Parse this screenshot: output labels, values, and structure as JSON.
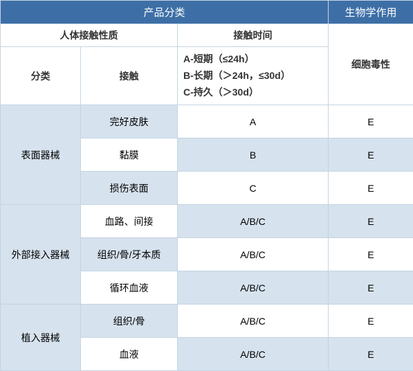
{
  "header": {
    "product_classification": "产品分类",
    "biological_effect": "生物学作用",
    "contact_nature": "人体接触性质",
    "contact_time": "接触时间",
    "classification_col": "分类",
    "contact_col": "接触",
    "time_lineA": "A-短期（≤24h）",
    "time_lineB": "B-长期（＞24h，≤30d）",
    "time_lineC": "C-持久（＞30d）",
    "cytotoxicity": "细胞毒性"
  },
  "rows": [
    {
      "category": "表面器械",
      "contact": "完好皮肤",
      "time": "A",
      "bio": "E"
    },
    {
      "category": "",
      "contact": "黏膜",
      "time": "B",
      "bio": "E"
    },
    {
      "category": "",
      "contact": "损伤表面",
      "time": "C",
      "bio": "E"
    },
    {
      "category": "外部接入器械",
      "contact": "血路、间接",
      "time": "A/B/C",
      "bio": "E"
    },
    {
      "category": "",
      "contact": "组织/骨/牙本质",
      "time": "A/B/C",
      "bio": "E"
    },
    {
      "category": "",
      "contact": "循环血液",
      "time": "A/B/C",
      "bio": "E"
    },
    {
      "category": "植入器械",
      "contact": "组织/骨",
      "time": "A/B/C",
      "bio": "E"
    },
    {
      "category": "",
      "contact": "血液",
      "time": "A/B/C",
      "bio": "E"
    }
  ],
  "colors": {
    "header_dark_bg": "#3d6fa6",
    "header_text": "#ffffff",
    "row_alt_bg": "#d6e2ee",
    "row_bg": "#ffffff",
    "border": "#c5d4e3"
  }
}
